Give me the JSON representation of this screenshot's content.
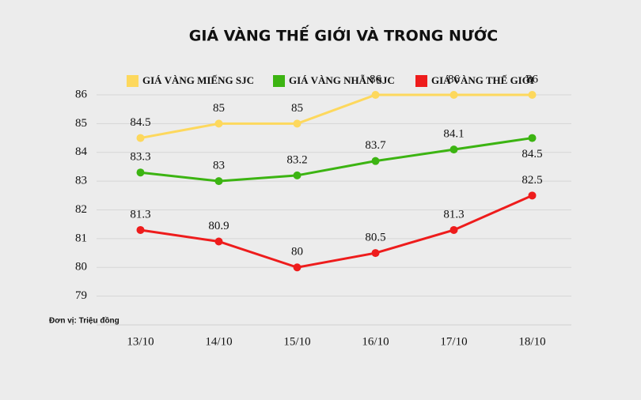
{
  "chart_data": {
    "type": "line",
    "title": "GIÁ VÀNG THẾ GIỚI VÀ TRONG NƯỚC",
    "note": "Đơn vị: Triệu đồng",
    "categories": [
      "13/10",
      "14/10",
      "15/10",
      "16/10",
      "17/10",
      "18/10"
    ],
    "series": [
      {
        "name": "GIÁ VÀNG MIẾNG SJC",
        "color": "#fdd85d",
        "values": [
          84.5,
          85,
          85,
          86,
          86,
          86
        ]
      },
      {
        "name": "GIÁ VÀNG NHẪN SJC",
        "color": "#3cb412",
        "values": [
          83.3,
          83,
          83.2,
          83.7,
          84.1,
          84.5
        ]
      },
      {
        "name": "GIÁ VÀNG THẾ GIỚI",
        "color": "#ee1c1c",
        "values": [
          81.3,
          80.9,
          80,
          80.5,
          81.3,
          82.5
        ]
      }
    ],
    "ylim": [
      78,
      86
    ],
    "yticks": [
      79,
      80,
      81,
      82,
      83,
      84,
      85,
      86
    ],
    "grid": true
  }
}
